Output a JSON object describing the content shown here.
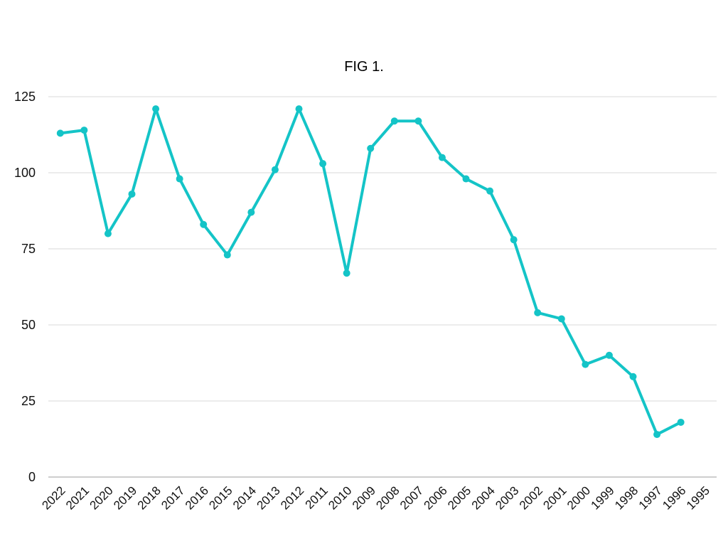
{
  "chart_data": {
    "type": "line",
    "title": "FIG 1.",
    "xlabel": "",
    "ylabel": "",
    "categories": [
      "2022",
      "2021",
      "2020",
      "2019",
      "2018",
      "2017",
      "2016",
      "2015",
      "2014",
      "2013",
      "2012",
      "2011",
      "2010",
      "2009",
      "2008",
      "2007",
      "2006",
      "2005",
      "2004",
      "2003",
      "2002",
      "2001",
      "2000",
      "1999",
      "1998",
      "1997",
      "1996",
      "1995"
    ],
    "series": [
      {
        "values": [
          113,
          114,
          80,
          93,
          121,
          98,
          83,
          73,
          87,
          101,
          121,
          103,
          67,
          108,
          117,
          117,
          105,
          98,
          94,
          78,
          54,
          52,
          37,
          40,
          33,
          14,
          18,
          null
        ],
        "color": "#14c4c7"
      }
    ],
    "ylim": [
      0,
      125
    ],
    "yticks": [
      0,
      25,
      50,
      75,
      100,
      125
    ],
    "grid": true,
    "legend": "none"
  }
}
